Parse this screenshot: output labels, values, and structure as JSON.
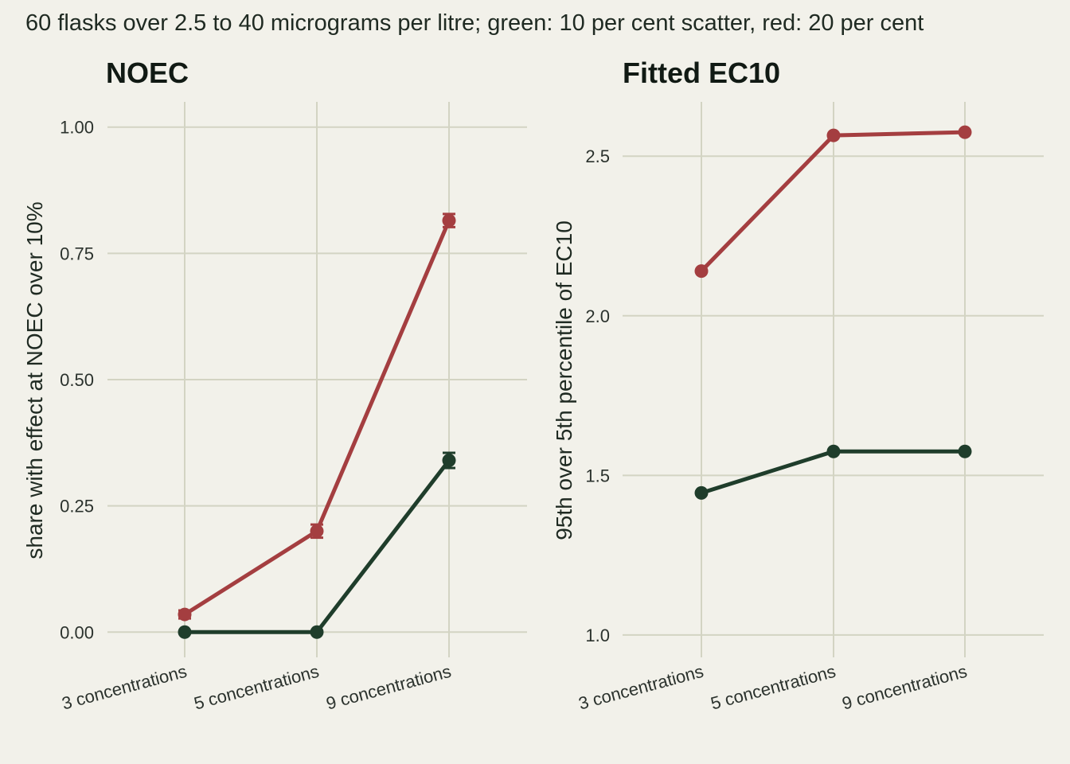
{
  "caption": "60 flasks over 2.5 to 40 micrograms per litre; green: 10 per cent scatter, red: 20 per cent",
  "colors": {
    "background": "#f2f1ea",
    "grid": "#d3d4c3",
    "green": "#1f3d2b",
    "red": "#a43e40"
  },
  "chart_data": [
    {
      "type": "line",
      "title": "NOEC",
      "xlabel": "",
      "ylabel": "share with effect at NOEC over 10%",
      "categories": [
        "3 concentrations",
        "5 concentrations",
        "9 concentrations"
      ],
      "yticks": [
        "0.00",
        "0.25",
        "0.50",
        "0.75",
        "1.00"
      ],
      "ytick_values": [
        0,
        0.25,
        0.5,
        0.75,
        1.0
      ],
      "ylim": [
        -0.05,
        1.05
      ],
      "grid": true,
      "error_bars": true,
      "series": [
        {
          "color": "red",
          "values": [
            0.035,
            0.2,
            0.815
          ],
          "errors": [
            0.008,
            0.013,
            0.013
          ]
        },
        {
          "color": "green",
          "values": [
            0.0,
            0.0,
            0.34
          ],
          "errors": [
            0.0,
            0.0,
            0.015
          ]
        }
      ]
    },
    {
      "type": "line",
      "title": "Fitted EC10",
      "xlabel": "",
      "ylabel": "95th over 5th percentile of EC10",
      "categories": [
        "3 concentrations",
        "5 concentrations",
        "9 concentrations"
      ],
      "yticks": [
        "1.0",
        "1.5",
        "2.0",
        "2.5"
      ],
      "ytick_values": [
        1.0,
        1.5,
        2.0,
        2.5
      ],
      "ylim": [
        0.93,
        2.67
      ],
      "grid": true,
      "error_bars": false,
      "series": [
        {
          "color": "red",
          "values": [
            2.14,
            2.565,
            2.575
          ]
        },
        {
          "color": "green",
          "values": [
            1.445,
            1.575,
            1.575
          ]
        }
      ]
    }
  ]
}
